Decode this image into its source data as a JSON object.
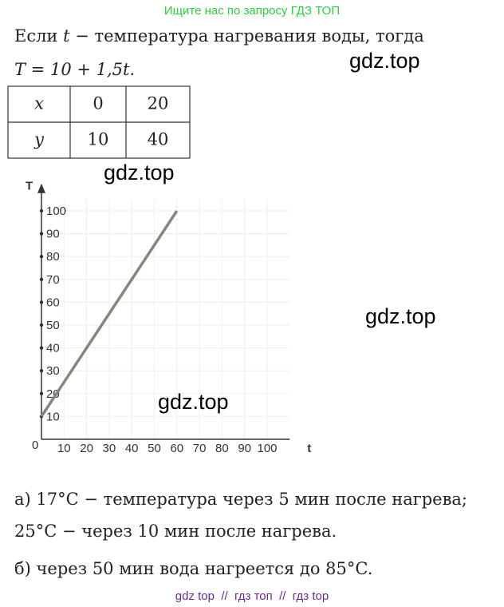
{
  "header": {
    "notice": "Ищите нас по запросу ГДЗ ТОП"
  },
  "intro": {
    "before": "Если ",
    "var": "t",
    "after": " − температура нагревания воды, тогда",
    "formula": "T = 10 + 1,5t."
  },
  "table": {
    "rows": [
      [
        "x",
        "0",
        "20"
      ],
      [
        "y",
        "10",
        "40"
      ]
    ]
  },
  "watermarks": [
    "gdz.top",
    "gdz.top",
    "gdz.top",
    "gdz.top"
  ],
  "graph": {
    "type": "line",
    "x_label": "t",
    "y_label": "T",
    "origin": "0",
    "x": [
      0,
      60
    ],
    "values": [
      10,
      100
    ],
    "color": "#8a847c",
    "xlim": [
      0,
      110
    ],
    "ylim": [
      0,
      105
    ],
    "xticks": [
      10,
      20,
      30,
      40,
      50,
      60,
      70,
      80,
      90,
      100
    ],
    "yticks": [
      10,
      20,
      30,
      40,
      50,
      60,
      70,
      80,
      90,
      100
    ],
    "grid": true
  },
  "answer": {
    "lines": [
      "а) 17°C − температура через 5 мин после нагрева;",
      "25°C − через 10 мин после нагрева.",
      "б) через 50 мин вода нагреется до 85°C."
    ]
  },
  "footer": {
    "text": "gdz top  //  гдз топ  //  гдз top"
  }
}
